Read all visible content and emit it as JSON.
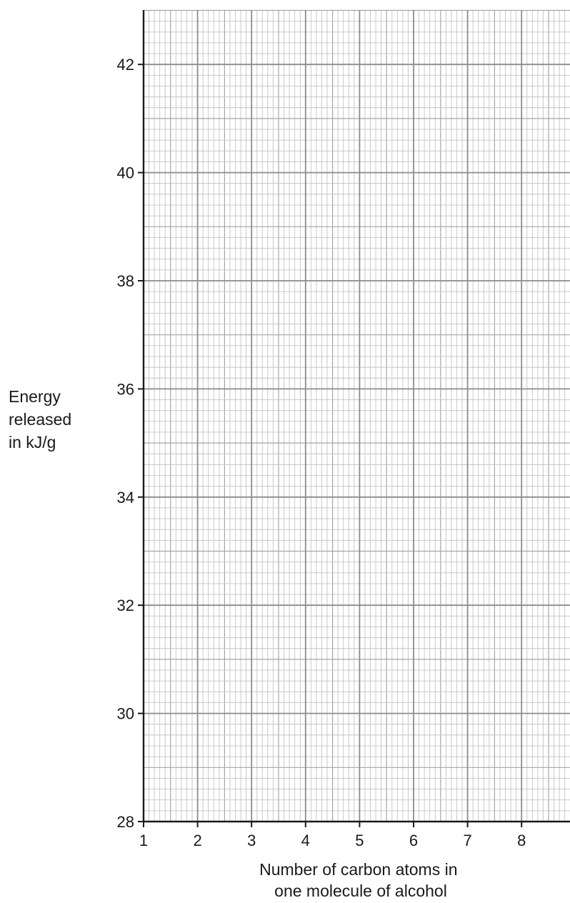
{
  "chart_data": {
    "type": "scatter",
    "title": "",
    "xlabel_lines": [
      "Number of carbon atoms in",
      "one molecule of alcohol"
    ],
    "ylabel_lines": [
      "Energy",
      "released",
      "in kJ/g"
    ],
    "xlim": [
      1,
      8.9
    ],
    "ylim": [
      28,
      43
    ],
    "x_ticks": [
      1,
      2,
      3,
      4,
      5,
      6,
      7,
      8
    ],
    "y_ticks": [
      28,
      30,
      32,
      34,
      36,
      38,
      40,
      42
    ],
    "x_tick_labels": [
      "1",
      "2",
      "3",
      "4",
      "5",
      "6",
      "7",
      "8"
    ],
    "y_tick_labels": [
      "28",
      "30",
      "32",
      "34",
      "36",
      "38",
      "40",
      "42"
    ],
    "grid": true,
    "series": []
  }
}
